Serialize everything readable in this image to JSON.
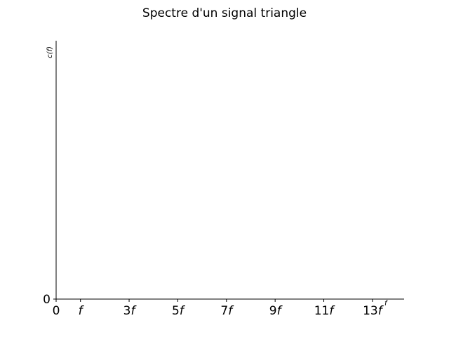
{
  "chart_data": {
    "type": "bar",
    "title": "Spectre d'un signal triangle",
    "xlabel": "f",
    "ylabel": "c(f)",
    "x_ticks": [
      {
        "value": 0,
        "label": "0"
      },
      {
        "value": 1,
        "label": "f"
      },
      {
        "value": 3,
        "label": "3f"
      },
      {
        "value": 5,
        "label": "5f"
      },
      {
        "value": 7,
        "label": "7f"
      },
      {
        "value": 9,
        "label": "9f"
      },
      {
        "value": 11,
        "label": "11f"
      },
      {
        "value": 13,
        "label": "13f"
      }
    ],
    "y_ticks": [
      {
        "value": 0,
        "label": "0"
      }
    ],
    "xlim": [
      0,
      14.3
    ],
    "ylim": [
      0,
      1
    ],
    "x": [],
    "values": [],
    "grid": false,
    "spines": [
      "left",
      "bottom"
    ]
  }
}
